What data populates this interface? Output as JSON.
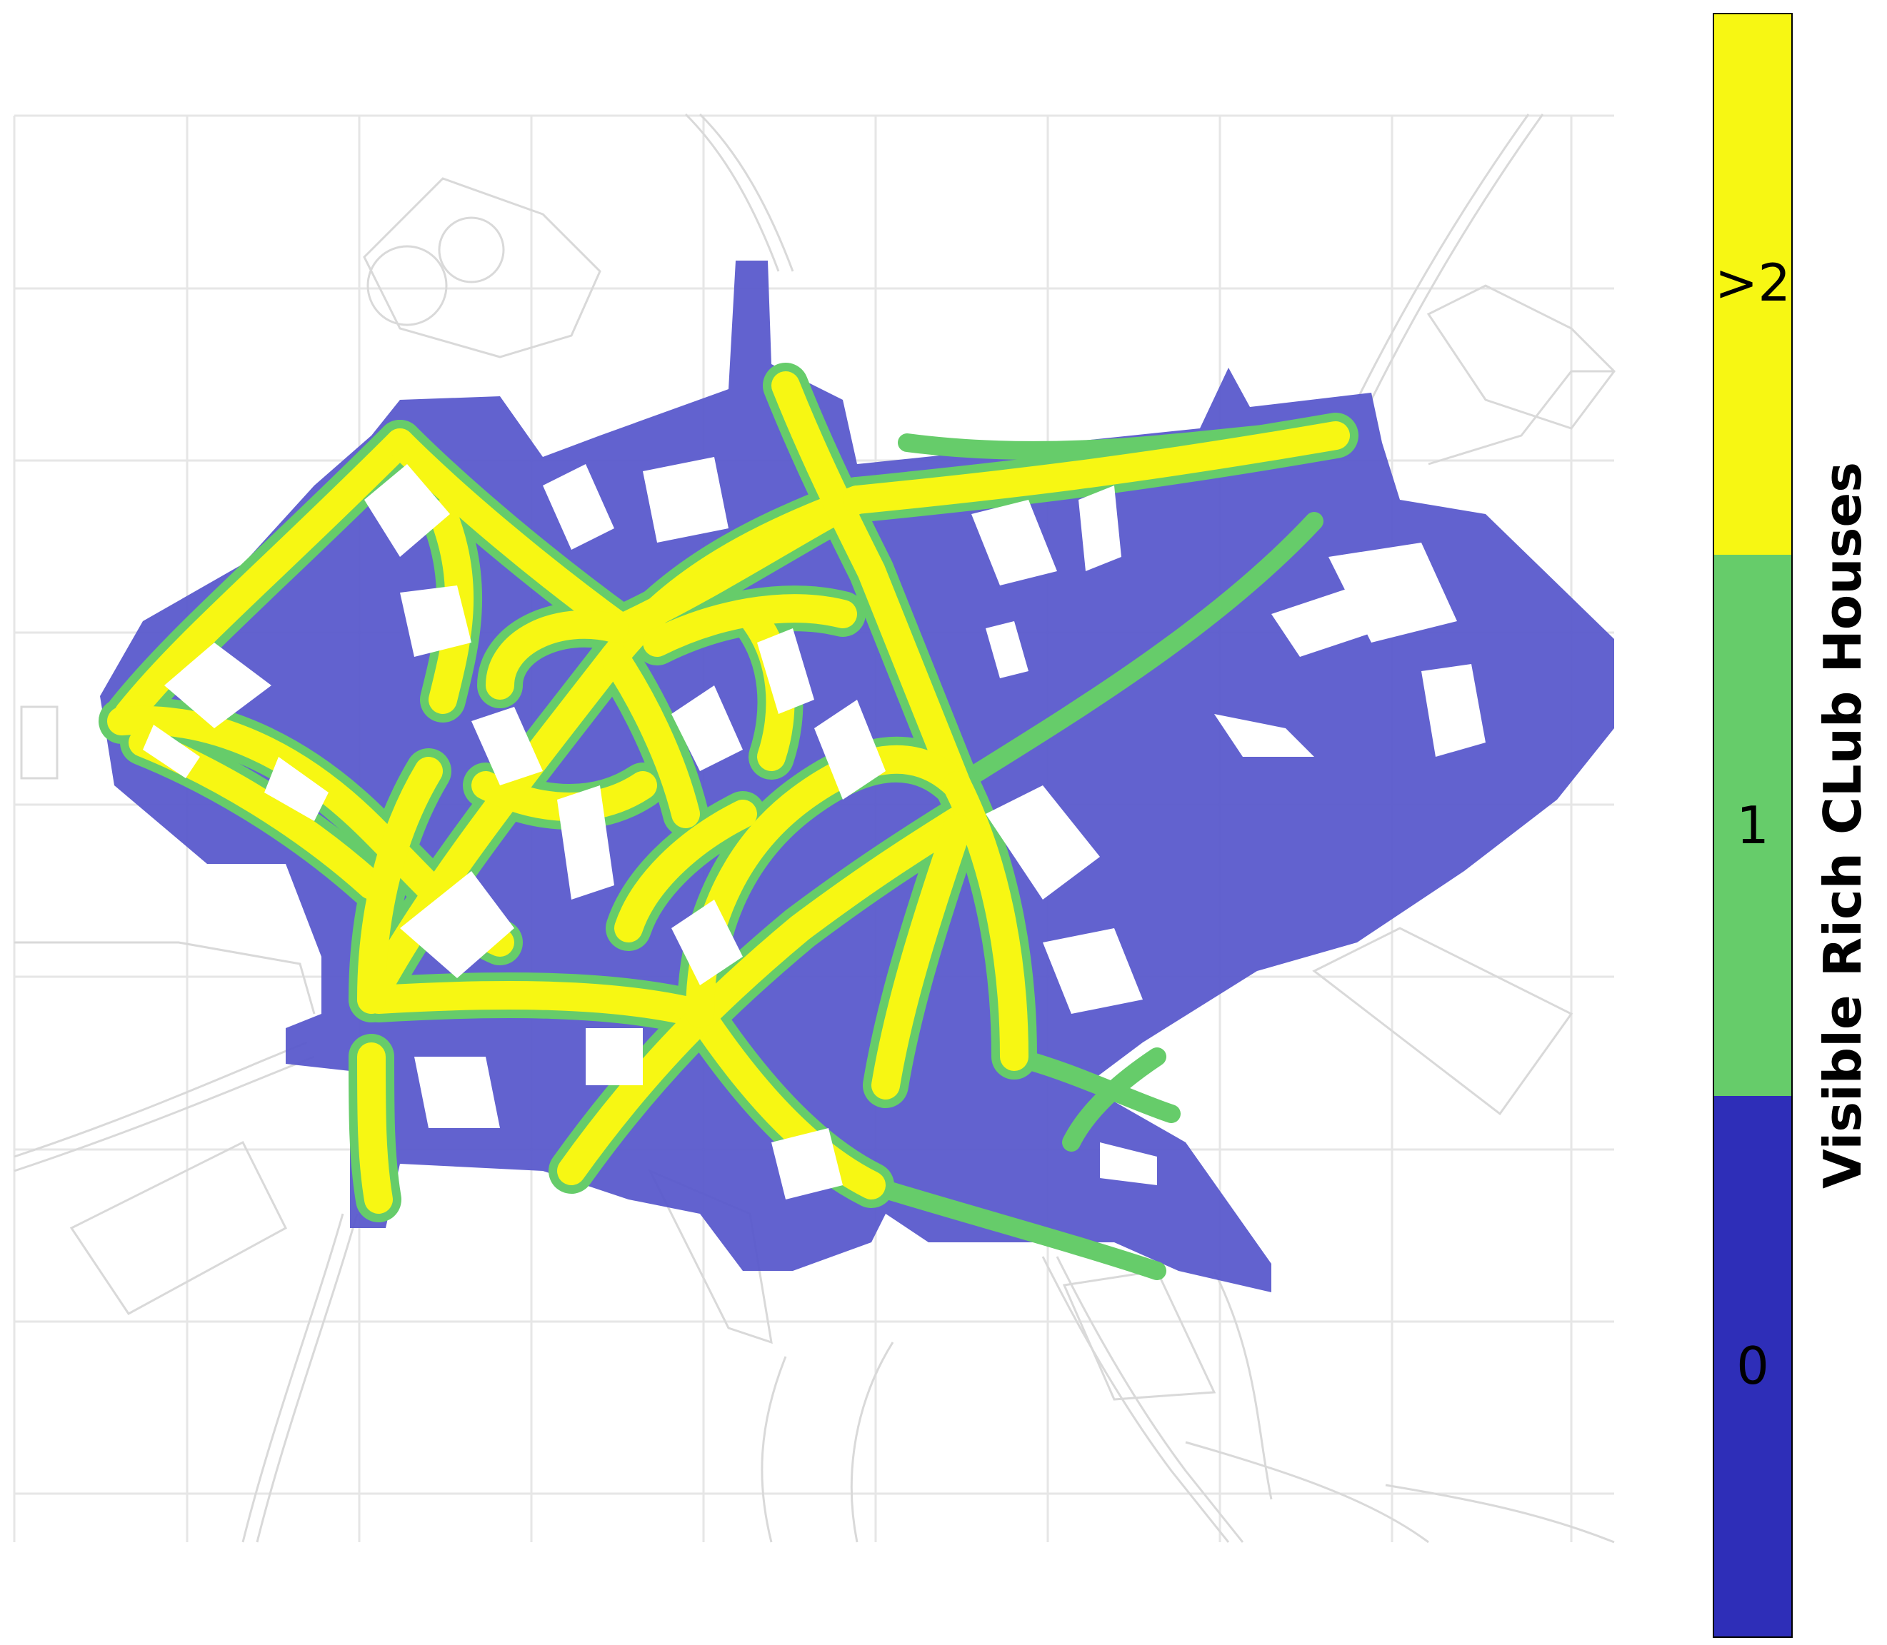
{
  "colorbar": {
    "label": "Visible Rich CLub Houses",
    "levels": [
      {
        "tick": ">2",
        "color": "#f7f713"
      },
      {
        "tick": "1",
        "color": "#66cc6a"
      },
      {
        "tick": "0",
        "color": "#2e2eb8"
      }
    ]
  },
  "map": {
    "base_line_color": "#d9d9d9",
    "coverage_colors": {
      "zero": "#5a5acc",
      "one": "#66cc6a",
      "many": "#f7f713"
    }
  }
}
